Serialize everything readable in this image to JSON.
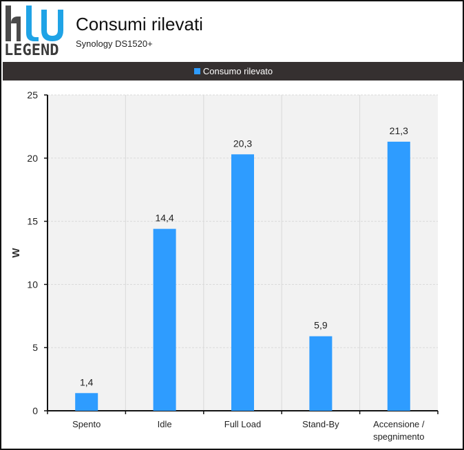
{
  "header": {
    "logo_text": "LEGEND",
    "title": "Consumi rilevati",
    "subtitle": "Synology DS1520+"
  },
  "colors": {
    "bar": "#2e9cff",
    "legend_background": "#353030",
    "plot_background": "#f2f2f2",
    "grid": "#d9d9d9",
    "logo_blue": "#1fa3e6",
    "logo_gray": "#4a4a4a"
  },
  "chart_data": {
    "type": "bar",
    "title": "Consumi rilevati",
    "subtitle": "Synology DS1520+",
    "categories": [
      "Spento",
      "Idle",
      "Full Load",
      "Stand-By",
      "Accensione / spegnimento"
    ],
    "series": [
      {
        "name": "Consumo rilevato",
        "values": [
          1.4,
          14.4,
          20.3,
          5.9,
          21.3
        ],
        "labels": [
          "1,4",
          "14,4",
          "20,3",
          "5,9",
          "21,3"
        ]
      }
    ],
    "xlabel": "",
    "ylabel": "W",
    "ylim": [
      0,
      25
    ],
    "yticks": [
      0,
      5,
      10,
      15,
      20,
      25
    ],
    "grid": true,
    "legend_position": "top"
  }
}
